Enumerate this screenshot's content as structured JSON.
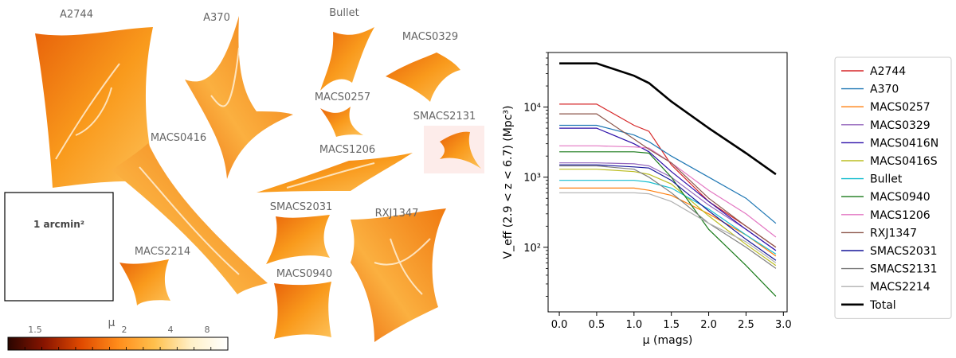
{
  "lens_panel": {
    "clusters": [
      {
        "name": "A2744"
      },
      {
        "name": "A370"
      },
      {
        "name": "Bullet"
      },
      {
        "name": "MACS0329"
      },
      {
        "name": "MACS0257"
      },
      {
        "name": "SMACS2131"
      },
      {
        "name": "MACS0416"
      },
      {
        "name": "MACS1206"
      },
      {
        "name": "SMACS2031"
      },
      {
        "name": "RXJ1347"
      },
      {
        "name": "MACS2214"
      },
      {
        "name": "MACS0940"
      }
    ],
    "scale_box_label": "1 arcmin²",
    "colorbar": {
      "label": "μ",
      "ticks": [
        "1.5",
        "2",
        "4",
        "8"
      ],
      "colors": [
        "#2a0500",
        "#8a1500",
        "#e04a00",
        "#ff8c1a",
        "#ffc04d",
        "#fff0c8",
        "#ffffff"
      ]
    },
    "colors": {
      "lens_light": "#fdc25a",
      "lens_mid": "#f99a1c",
      "lens_dark": "#e8620a",
      "caustic": "#fff4e0"
    }
  },
  "chart_data": {
    "type": "line",
    "xlabel": "μ (mags)",
    "ylabel": "V_eff (2.9 < z < 6.7) (Mpc³)",
    "yscale": "log",
    "xlim": [
      -0.15,
      3.05
    ],
    "ylim": [
      12,
      60000
    ],
    "xticks": [
      0.0,
      0.5,
      1.0,
      1.5,
      2.0,
      2.5,
      3.0
    ],
    "xtick_labels": [
      "0.0",
      "0.5",
      "1.0",
      "1.5",
      "2.0",
      "2.5",
      "3.0"
    ],
    "yticks": [
      100,
      1000,
      10000
    ],
    "ytick_labels": [
      "10²",
      "10³",
      "10⁴"
    ],
    "x": [
      0.0,
      0.5,
      1.0,
      1.2,
      1.5,
      2.0,
      2.5,
      2.9
    ],
    "series": [
      {
        "name": "A2744",
        "color": "#d62728",
        "values": [
          11000,
          11000,
          5500,
          4500,
          1500,
          450,
          200,
          100
        ]
      },
      {
        "name": "A370",
        "color": "#1f77b4",
        "values": [
          5500,
          5500,
          4000,
          3200,
          2000,
          1000,
          500,
          220
        ]
      },
      {
        "name": "MACS0257",
        "color": "#ff7f0e",
        "values": [
          700,
          700,
          700,
          650,
          550,
          300,
          150,
          75
        ]
      },
      {
        "name": "MACS0329",
        "color": "#9467bd",
        "values": [
          1600,
          1600,
          1550,
          1450,
          1000,
          400,
          180,
          90
        ]
      },
      {
        "name": "MACS0416N",
        "color": "#2c0fa8",
        "values": [
          5000,
          5000,
          3000,
          2300,
          1200,
          450,
          180,
          90
        ]
      },
      {
        "name": "MACS0416S",
        "color": "#bcbd22",
        "values": [
          1300,
          1300,
          1200,
          1100,
          800,
          280,
          110,
          55
        ]
      },
      {
        "name": "Bullet",
        "color": "#17becf",
        "values": [
          900,
          900,
          900,
          850,
          700,
          350,
          150,
          80
        ]
      },
      {
        "name": "MACS0940",
        "color": "#1a7a1a",
        "values": [
          2300,
          2300,
          2300,
          2200,
          1000,
          180,
          55,
          20
        ]
      },
      {
        "name": "MACS1206",
        "color": "#e377c2",
        "values": [
          2800,
          2800,
          2700,
          2600,
          1600,
          650,
          300,
          140
        ]
      },
      {
        "name": "RXJ1347",
        "color": "#8c564b",
        "values": [
          8000,
          8000,
          3500,
          2500,
          1600,
          500,
          200,
          100
        ]
      },
      {
        "name": "SMACS2031",
        "color": "#151599",
        "values": [
          1500,
          1500,
          1400,
          1350,
          900,
          330,
          130,
          65
        ]
      },
      {
        "name": "SMACS2131",
        "color": "#7f7f7f",
        "values": [
          1450,
          1450,
          1300,
          1000,
          600,
          220,
          100,
          50
        ]
      },
      {
        "name": "MACS2214",
        "color": "#b0b0b0",
        "values": [
          600,
          600,
          600,
          580,
          450,
          220,
          120,
          60
        ]
      },
      {
        "name": "Total",
        "color": "#000000",
        "values": [
          42000,
          42000,
          28000,
          22000,
          12000,
          5000,
          2200,
          1100
        ]
      }
    ],
    "legend_location": "right, outside"
  }
}
